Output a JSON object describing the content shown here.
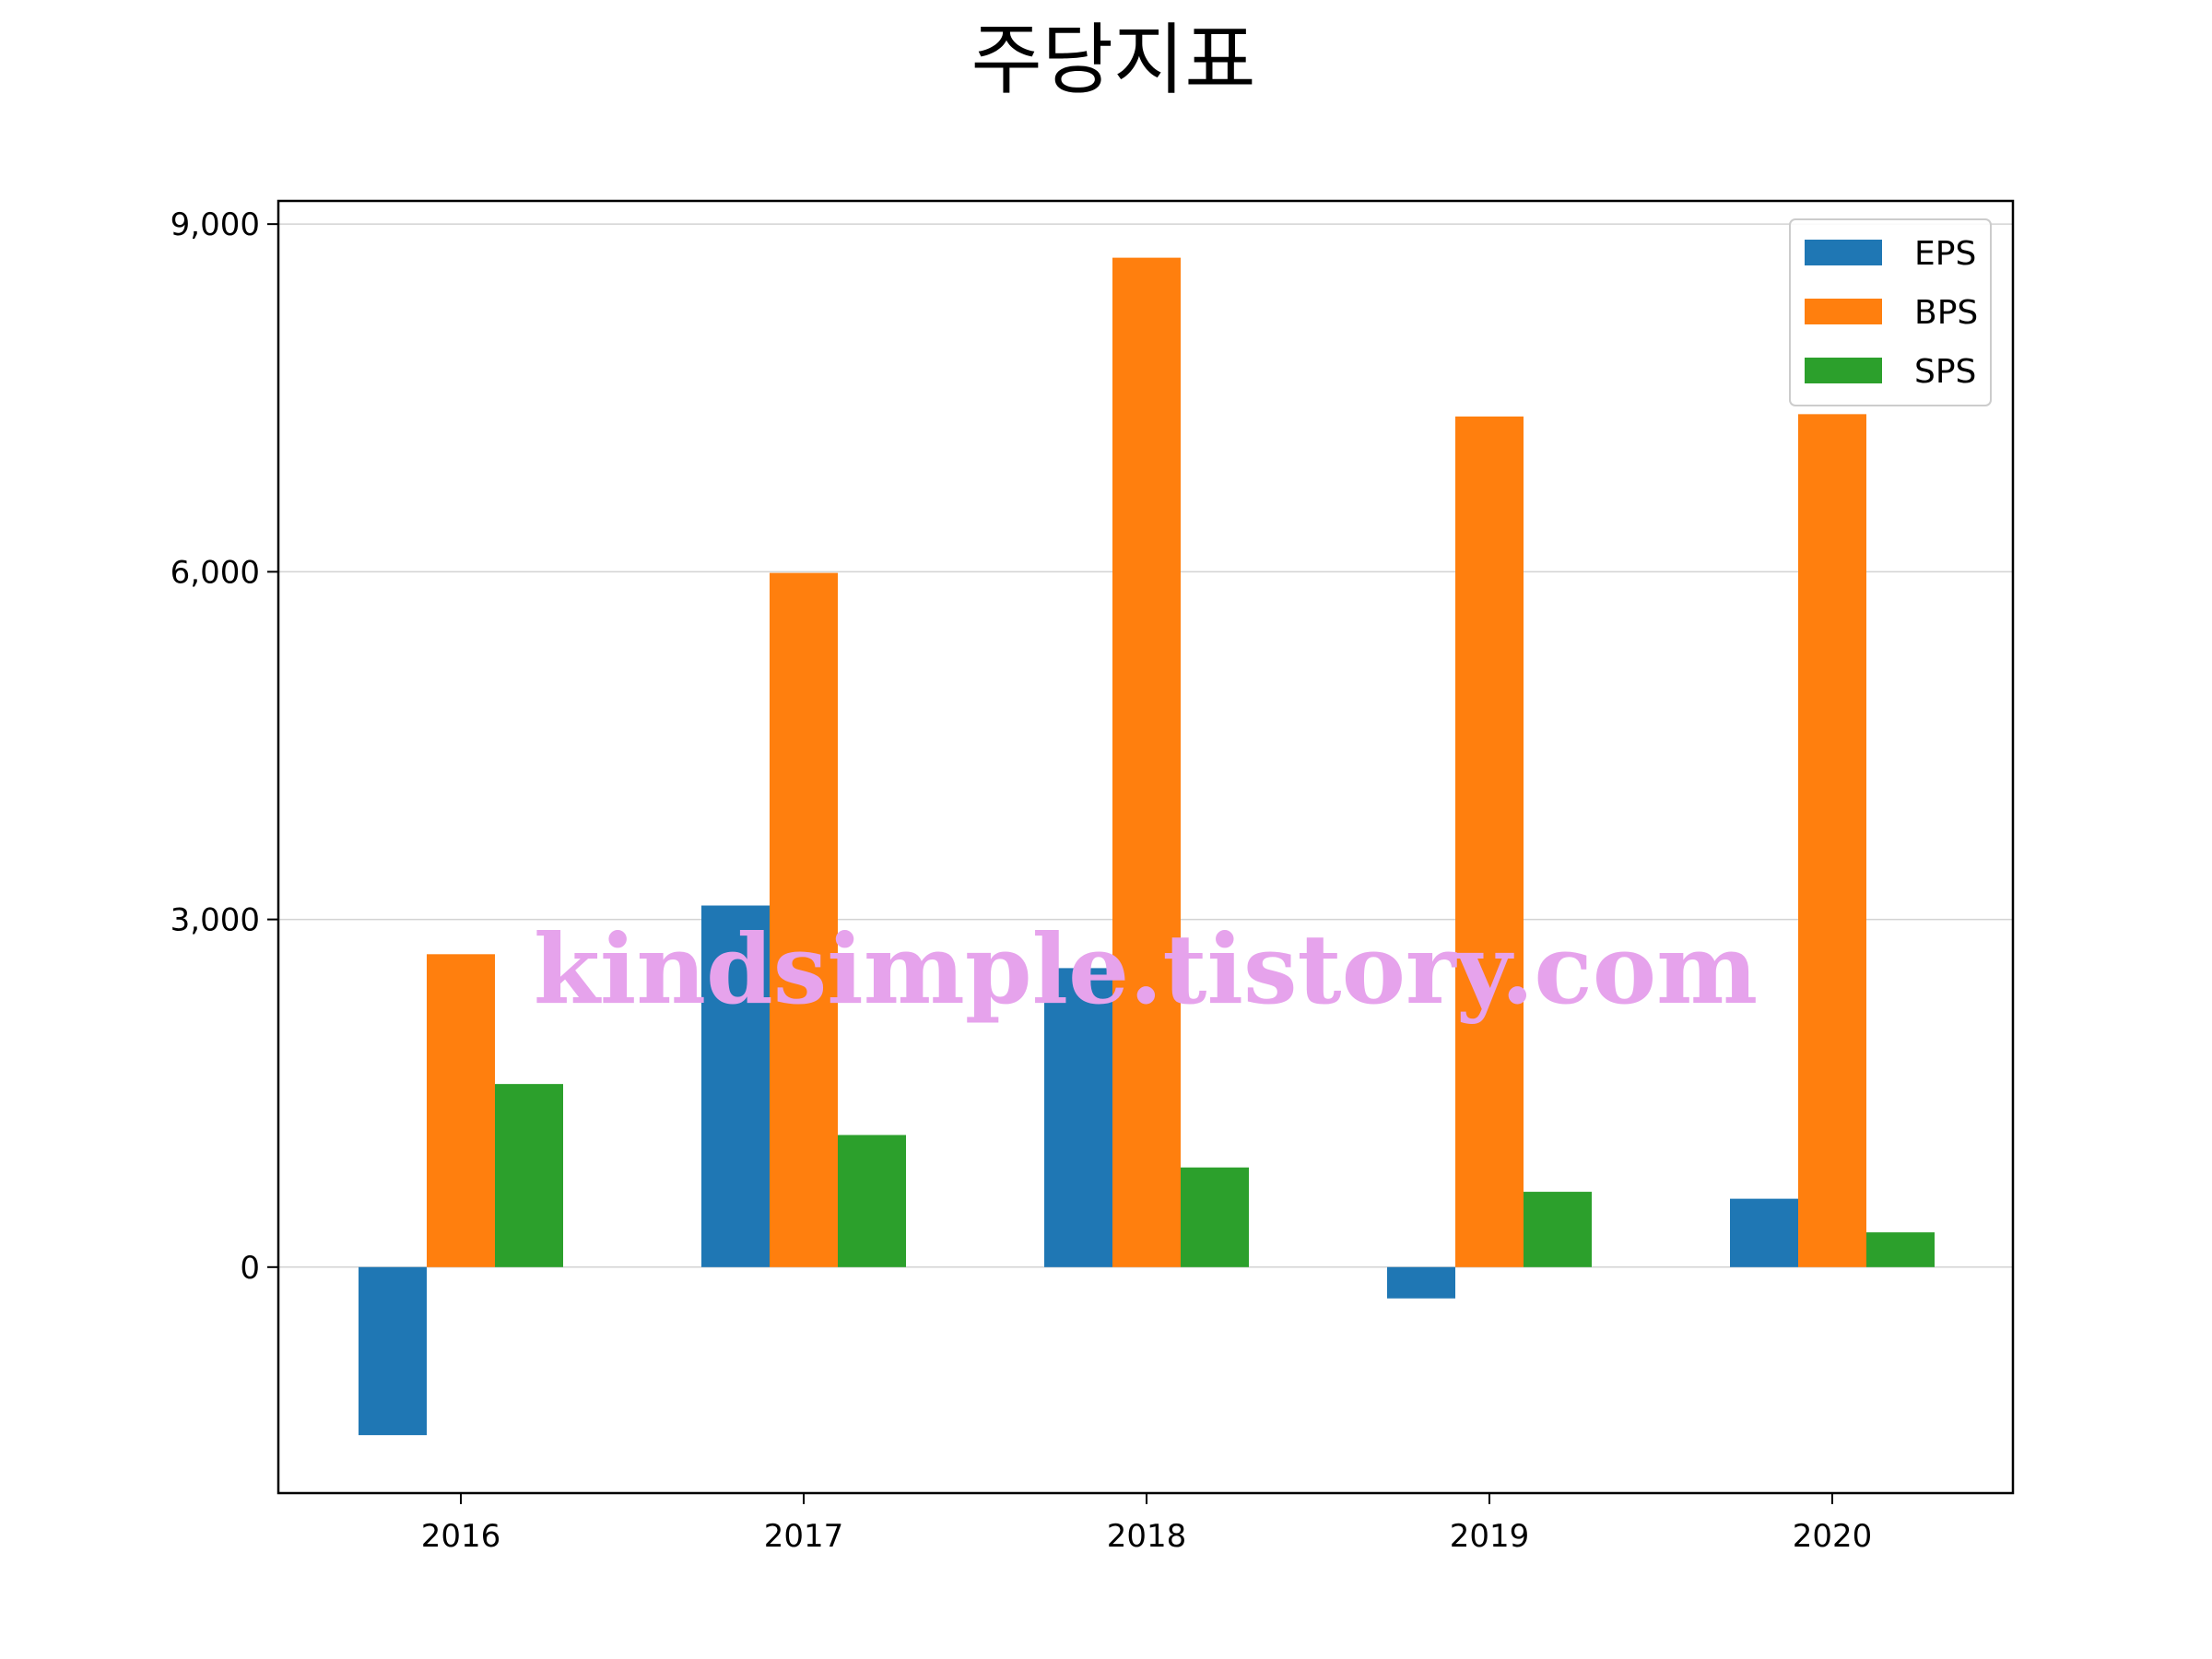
{
  "chart_data": {
    "type": "bar",
    "title": "주당지표",
    "xlabel": "",
    "ylabel": "",
    "categories": [
      "2016",
      "2017",
      "2018",
      "2019",
      "2020"
    ],
    "series": [
      {
        "name": "EPS",
        "color": "#1f77b4",
        "values": [
          -1450,
          3120,
          2580,
          -270,
          590
        ]
      },
      {
        "name": "BPS",
        "color": "#ff7f0e",
        "values": [
          2700,
          5990,
          8710,
          7340,
          7360
        ]
      },
      {
        "name": "SPS",
        "color": "#2ca02c",
        "values": [
          1580,
          1140,
          860,
          650,
          300
        ]
      }
    ],
    "ylim": [
      -1950,
      9200
    ],
    "yticks": [
      0,
      3000,
      6000,
      9000
    ],
    "ytick_labels": [
      "0",
      "3,000",
      "6,000",
      "9,000"
    ],
    "grid": "horizontal",
    "legend_position": "top-right",
    "watermark": "kindsimple.tistory.com"
  }
}
